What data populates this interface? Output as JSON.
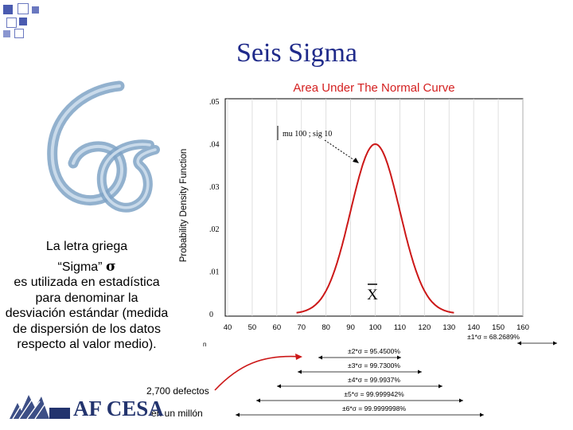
{
  "title": "Seis Sigma",
  "left_text": {
    "line1": "La letra griega",
    "sigma_quote": "“Sigma”",
    "sigma_symbol": "σ",
    "rest": "es utilizada en estadística para denominar la desviación estándar (medida de dispersión de los datos respecto al valor medio)."
  },
  "defects_line1": "2,700 defectos",
  "defects_line2": "en un millón",
  "logo_text": "AF CESA",
  "icons": [
    "sigma-logo-icon",
    "af-cesa-logo-icon"
  ],
  "colors": {
    "title": "#1f2a8a",
    "chart_title": "#d42020",
    "curve": "#cc1818",
    "logo": "#23346e",
    "squares": "#4a5bb0"
  },
  "chart_data": {
    "type": "line",
    "title": "Area Under The Normal Curve",
    "ylabel": "Probability Density Function",
    "xlabel": "",
    "x_ticks": [
      "40",
      "50",
      "60",
      "70",
      "80",
      "90",
      "100",
      "110",
      "120",
      "130",
      "140",
      "150",
      "160"
    ],
    "y_ticks": [
      ".05",
      ".04",
      ".03",
      ".02",
      ".01",
      "0"
    ],
    "xlim": [
      40,
      160
    ],
    "ylim": [
      0,
      0.05
    ],
    "series": [
      {
        "mean": 100,
        "sigma": 10
      }
    ],
    "annotation": "mu 100 ; sig 10",
    "mean_label": "X",
    "small_mark": "n",
    "ranges": [
      {
        "label": "±1*σ = 68.2689%",
        "sigmas": 1
      },
      {
        "label": "±2*σ = 95.4500%",
        "sigmas": 2
      },
      {
        "label": "±3*σ = 99.7300%",
        "sigmas": 3
      },
      {
        "label": "±4*σ = 99.9937%",
        "sigmas": 4
      },
      {
        "label": "±5*σ = 99.999942%",
        "sigmas": 5
      },
      {
        "label": "±6*σ = 99.9999998%",
        "sigmas": 6
      }
    ]
  }
}
